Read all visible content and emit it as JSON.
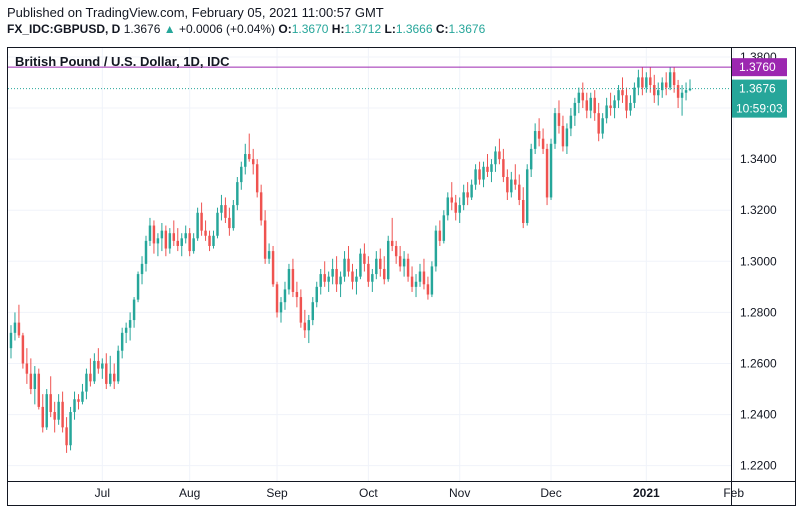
{
  "header": {
    "published": "Published on TradingView.com, February 05, 2021 11:00:57 GMT",
    "symbol": "FX_IDC:GBPUSD, D",
    "price": "1.3676",
    "change_arrow": "▲",
    "change": "+0.0006 (+0.04%)",
    "open_label": "O:",
    "open": "1.3670",
    "high_label": "H:",
    "high": "1.3712",
    "low_label": "L:",
    "low": "1.3666",
    "close_label": "C:",
    "close": "1.3676"
  },
  "colors": {
    "up": "#26a69a",
    "down": "#ef5350",
    "level_line": "#9c27b0",
    "grid": "#f0f3fa",
    "border": "#131722"
  },
  "chart_data": {
    "type": "candlestick",
    "title": "British Pound / U.S. Dollar, 1D, IDC",
    "ylim": [
      1.214,
      1.3835
    ],
    "y_ticks": [
      "1.2200",
      "1.2400",
      "1.2600",
      "1.2800",
      "1.3000",
      "1.3200",
      "1.3400",
      "1.3600",
      "1.3800"
    ],
    "x_ticks": [
      {
        "label": "Jul",
        "index": 23,
        "bold": false
      },
      {
        "label": "Aug",
        "index": 45,
        "bold": false
      },
      {
        "label": "Sep",
        "index": 67,
        "bold": false
      },
      {
        "label": "Oct",
        "index": 90,
        "bold": false
      },
      {
        "label": "Nov",
        "index": 113,
        "bold": false
      },
      {
        "label": "Dec",
        "index": 136,
        "bold": false
      },
      {
        "label": "2021",
        "index": 160,
        "bold": true
      },
      {
        "label": "Feb",
        "index": 182,
        "bold": false
      }
    ],
    "level_line": {
      "value": 1.376,
      "label": "1.3760"
    },
    "last_price": {
      "value": 1.3676,
      "label": "1.3676",
      "countdown": "10:59:03"
    },
    "series": [
      [
        1.266,
        1.275,
        1.262,
        1.272
      ],
      [
        1.272,
        1.28,
        1.269,
        1.276
      ],
      [
        1.276,
        1.283,
        1.27,
        1.271
      ],
      [
        1.271,
        1.272,
        1.258,
        1.26
      ],
      [
        1.26,
        1.266,
        1.252,
        1.256
      ],
      [
        1.256,
        1.262,
        1.248,
        1.25
      ],
      [
        1.25,
        1.259,
        1.244,
        1.256
      ],
      [
        1.256,
        1.258,
        1.242,
        1.243
      ],
      [
        1.243,
        1.248,
        1.233,
        1.235
      ],
      [
        1.235,
        1.25,
        1.234,
        1.248
      ],
      [
        1.248,
        1.255,
        1.239,
        1.241
      ],
      [
        1.241,
        1.245,
        1.233,
        1.238
      ],
      [
        1.238,
        1.248,
        1.236,
        1.245
      ],
      [
        1.245,
        1.249,
        1.233,
        1.235
      ],
      [
        1.235,
        1.239,
        1.225,
        1.228
      ],
      [
        1.228,
        1.243,
        1.226,
        1.241
      ],
      [
        1.241,
        1.249,
        1.238,
        1.246
      ],
      [
        1.246,
        1.248,
        1.242,
        1.245
      ],
      [
        1.245,
        1.252,
        1.244,
        1.249
      ],
      [
        1.249,
        1.258,
        1.246,
        1.256
      ],
      [
        1.256,
        1.262,
        1.251,
        1.253
      ],
      [
        1.253,
        1.264,
        1.252,
        1.261
      ],
      [
        1.261,
        1.266,
        1.256,
        1.258
      ],
      [
        1.258,
        1.262,
        1.254,
        1.26
      ],
      [
        1.26,
        1.264,
        1.25,
        1.252
      ],
      [
        1.252,
        1.263,
        1.251,
        1.256
      ],
      [
        1.256,
        1.26,
        1.25,
        1.253
      ],
      [
        1.253,
        1.267,
        1.252,
        1.265
      ],
      [
        1.265,
        1.274,
        1.262,
        1.272
      ],
      [
        1.272,
        1.276,
        1.268,
        1.274
      ],
      [
        1.274,
        1.28,
        1.269,
        1.277
      ],
      [
        1.277,
        1.286,
        1.274,
        1.285
      ],
      [
        1.285,
        1.296,
        1.284,
        1.295
      ],
      [
        1.295,
        1.302,
        1.291,
        1.299
      ],
      [
        1.299,
        1.31,
        1.296,
        1.308
      ],
      [
        1.308,
        1.317,
        1.306,
        1.314
      ],
      [
        1.314,
        1.316,
        1.303,
        1.307
      ],
      [
        1.307,
        1.311,
        1.302,
        1.309
      ],
      [
        1.309,
        1.315,
        1.304,
        1.312
      ],
      [
        1.312,
        1.314,
        1.302,
        1.305
      ],
      [
        1.305,
        1.313,
        1.303,
        1.311
      ],
      [
        1.311,
        1.316,
        1.306,
        1.308
      ],
      [
        1.308,
        1.313,
        1.304,
        1.306
      ],
      [
        1.306,
        1.311,
        1.302,
        1.309
      ],
      [
        1.309,
        1.314,
        1.307,
        1.311
      ],
      [
        1.311,
        1.313,
        1.302,
        1.304
      ],
      [
        1.304,
        1.311,
        1.303,
        1.309
      ],
      [
        1.309,
        1.321,
        1.308,
        1.319
      ],
      [
        1.319,
        1.323,
        1.31,
        1.312
      ],
      [
        1.312,
        1.316,
        1.308,
        1.31
      ],
      [
        1.31,
        1.312,
        1.304,
        1.306
      ],
      [
        1.306,
        1.312,
        1.305,
        1.31
      ],
      [
        1.31,
        1.321,
        1.309,
        1.319
      ],
      [
        1.319,
        1.326,
        1.316,
        1.322
      ],
      [
        1.322,
        1.325,
        1.315,
        1.317
      ],
      [
        1.317,
        1.321,
        1.31,
        1.313
      ],
      [
        1.313,
        1.324,
        1.312,
        1.322
      ],
      [
        1.322,
        1.333,
        1.32,
        1.331
      ],
      [
        1.331,
        1.339,
        1.328,
        1.337
      ],
      [
        1.337,
        1.346,
        1.334,
        1.342
      ],
      [
        1.342,
        1.35,
        1.339,
        1.34
      ],
      [
        1.34,
        1.344,
        1.334,
        1.338
      ],
      [
        1.338,
        1.34,
        1.325,
        1.327
      ],
      [
        1.327,
        1.33,
        1.314,
        1.316
      ],
      [
        1.316,
        1.32,
        1.299,
        1.301
      ],
      [
        1.301,
        1.307,
        1.299,
        1.304
      ],
      [
        1.304,
        1.306,
        1.29,
        1.291
      ],
      [
        1.291,
        1.292,
        1.278,
        1.28
      ],
      [
        1.28,
        1.286,
        1.276,
        1.284
      ],
      [
        1.284,
        1.292,
        1.281,
        1.289
      ],
      [
        1.289,
        1.299,
        1.287,
        1.297
      ],
      [
        1.297,
        1.301,
        1.286,
        1.288
      ],
      [
        1.288,
        1.292,
        1.282,
        1.286
      ],
      [
        1.286,
        1.289,
        1.274,
        1.276
      ],
      [
        1.276,
        1.281,
        1.27,
        1.273
      ],
      [
        1.273,
        1.279,
        1.268,
        1.277
      ],
      [
        1.277,
        1.286,
        1.275,
        1.284
      ],
      [
        1.284,
        1.292,
        1.282,
        1.29
      ],
      [
        1.29,
        1.297,
        1.287,
        1.295
      ],
      [
        1.295,
        1.3,
        1.29,
        1.292
      ],
      [
        1.292,
        1.296,
        1.288,
        1.294
      ],
      [
        1.294,
        1.301,
        1.291,
        1.297
      ],
      [
        1.297,
        1.302,
        1.288,
        1.291
      ],
      [
        1.291,
        1.296,
        1.286,
        1.294
      ],
      [
        1.294,
        1.304,
        1.292,
        1.301
      ],
      [
        1.301,
        1.306,
        1.294,
        1.296
      ],
      [
        1.296,
        1.299,
        1.289,
        1.292
      ],
      [
        1.292,
        1.297,
        1.287,
        1.294
      ],
      [
        1.294,
        1.305,
        1.293,
        1.303
      ],
      [
        1.303,
        1.307,
        1.296,
        1.299
      ],
      [
        1.299,
        1.302,
        1.29,
        1.292
      ],
      [
        1.292,
        1.297,
        1.288,
        1.295
      ],
      [
        1.295,
        1.304,
        1.293,
        1.301
      ],
      [
        1.301,
        1.305,
        1.294,
        1.297
      ],
      [
        1.297,
        1.302,
        1.291,
        1.293
      ],
      [
        1.293,
        1.31,
        1.292,
        1.308
      ],
      [
        1.308,
        1.317,
        1.304,
        1.306
      ],
      [
        1.306,
        1.308,
        1.299,
        1.302
      ],
      [
        1.302,
        1.306,
        1.296,
        1.298
      ],
      [
        1.298,
        1.304,
        1.294,
        1.301
      ],
      [
        1.301,
        1.303,
        1.292,
        1.294
      ],
      [
        1.294,
        1.298,
        1.288,
        1.29
      ],
      [
        1.29,
        1.295,
        1.286,
        1.292
      ],
      [
        1.292,
        1.299,
        1.29,
        1.296
      ],
      [
        1.296,
        1.301,
        1.289,
        1.291
      ],
      [
        1.291,
        1.294,
        1.285,
        1.287
      ],
      [
        1.287,
        1.3,
        1.286,
        1.298
      ],
      [
        1.298,
        1.314,
        1.296,
        1.312
      ],
      [
        1.312,
        1.316,
        1.306,
        1.308
      ],
      [
        1.308,
        1.32,
        1.307,
        1.318
      ],
      [
        1.318,
        1.327,
        1.316,
        1.325
      ],
      [
        1.325,
        1.331,
        1.32,
        1.323
      ],
      [
        1.323,
        1.326,
        1.316,
        1.319
      ],
      [
        1.319,
        1.325,
        1.315,
        1.322
      ],
      [
        1.322,
        1.33,
        1.32,
        1.327
      ],
      [
        1.327,
        1.331,
        1.322,
        1.325
      ],
      [
        1.325,
        1.332,
        1.324,
        1.33
      ],
      [
        1.33,
        1.338,
        1.328,
        1.336
      ],
      [
        1.336,
        1.339,
        1.33,
        1.332
      ],
      [
        1.332,
        1.339,
        1.329,
        1.337
      ],
      [
        1.337,
        1.342,
        1.333,
        1.335
      ],
      [
        1.335,
        1.34,
        1.331,
        1.338
      ],
      [
        1.338,
        1.345,
        1.335,
        1.343
      ],
      [
        1.343,
        1.348,
        1.338,
        1.34
      ],
      [
        1.34,
        1.344,
        1.331,
        1.333
      ],
      [
        1.333,
        1.336,
        1.324,
        1.327
      ],
      [
        1.327,
        1.335,
        1.325,
        1.332
      ],
      [
        1.332,
        1.338,
        1.328,
        1.33
      ],
      [
        1.33,
        1.334,
        1.322,
        1.324
      ],
      [
        1.324,
        1.329,
        1.313,
        1.315
      ],
      [
        1.315,
        1.338,
        1.314,
        1.336
      ],
      [
        1.336,
        1.346,
        1.333,
        1.344
      ],
      [
        1.344,
        1.354,
        1.342,
        1.351
      ],
      [
        1.351,
        1.356,
        1.345,
        1.348
      ],
      [
        1.348,
        1.352,
        1.342,
        1.344
      ],
      [
        1.344,
        1.346,
        1.322,
        1.325
      ],
      [
        1.325,
        1.348,
        1.324,
        1.346
      ],
      [
        1.346,
        1.36,
        1.344,
        1.358
      ],
      [
        1.358,
        1.363,
        1.35,
        1.353
      ],
      [
        1.353,
        1.357,
        1.343,
        1.345
      ],
      [
        1.345,
        1.354,
        1.342,
        1.352
      ],
      [
        1.352,
        1.36,
        1.349,
        1.357
      ],
      [
        1.357,
        1.364,
        1.353,
        1.362
      ],
      [
        1.362,
        1.368,
        1.358,
        1.366
      ],
      [
        1.366,
        1.37,
        1.36,
        1.363
      ],
      [
        1.363,
        1.366,
        1.356,
        1.359
      ],
      [
        1.359,
        1.366,
        1.356,
        1.364
      ],
      [
        1.364,
        1.367,
        1.355,
        1.358
      ],
      [
        1.358,
        1.362,
        1.347,
        1.35
      ],
      [
        1.35,
        1.358,
        1.348,
        1.356
      ],
      [
        1.356,
        1.364,
        1.354,
        1.361
      ],
      [
        1.361,
        1.366,
        1.357,
        1.36
      ],
      [
        1.36,
        1.365,
        1.356,
        1.363
      ],
      [
        1.363,
        1.369,
        1.36,
        1.367
      ],
      [
        1.367,
        1.372,
        1.362,
        1.365
      ],
      [
        1.365,
        1.368,
        1.356,
        1.359
      ],
      [
        1.359,
        1.365,
        1.357,
        1.362
      ],
      [
        1.362,
        1.37,
        1.36,
        1.368
      ],
      [
        1.368,
        1.375,
        1.365,
        1.372
      ],
      [
        1.372,
        1.376,
        1.365,
        1.368
      ],
      [
        1.368,
        1.374,
        1.366,
        1.372
      ],
      [
        1.372,
        1.376,
        1.366,
        1.369
      ],
      [
        1.369,
        1.373,
        1.362,
        1.365
      ],
      [
        1.365,
        1.37,
        1.361,
        1.367
      ],
      [
        1.367,
        1.372,
        1.364,
        1.37
      ],
      [
        1.37,
        1.374,
        1.365,
        1.368
      ],
      [
        1.368,
        1.376,
        1.367,
        1.374
      ],
      [
        1.374,
        1.376,
        1.366,
        1.369
      ],
      [
        1.369,
        1.371,
        1.36,
        1.364
      ],
      [
        1.364,
        1.369,
        1.357,
        1.366
      ],
      [
        1.366,
        1.37,
        1.363,
        1.367
      ],
      [
        1.367,
        1.3712,
        1.3666,
        1.3676
      ]
    ]
  }
}
